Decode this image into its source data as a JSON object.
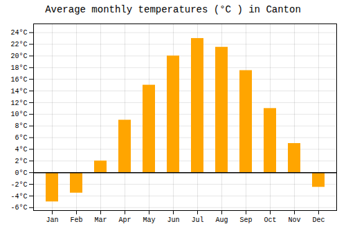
{
  "chart_data": {
    "type": "bar",
    "title": "Average monthly temperatures (°C ) in Canton",
    "categories": [
      "Jan",
      "Feb",
      "Mar",
      "Apr",
      "May",
      "Jun",
      "Jul",
      "Aug",
      "Sep",
      "Oct",
      "Nov",
      "Dec"
    ],
    "values": [
      -5,
      -3.5,
      2,
      9,
      15,
      20,
      23,
      21.5,
      17.5,
      11,
      5,
      -2.5
    ],
    "color": "#FFA500",
    "ylim": [
      -6.5,
      25.5
    ],
    "yticks": [
      {
        "value": -6,
        "label": "-6°C"
      },
      {
        "value": -4,
        "label": "-4°C"
      },
      {
        "value": -2,
        "label": "-2°C"
      },
      {
        "value": 0,
        "label": "0°C"
      },
      {
        "value": 2,
        "label": "2°C"
      },
      {
        "value": 4,
        "label": "4°C"
      },
      {
        "value": 6,
        "label": "6°C"
      },
      {
        "value": 8,
        "label": "8°C"
      },
      {
        "value": 10,
        "label": "10°C"
      },
      {
        "value": 12,
        "label": "12°C"
      },
      {
        "value": 14,
        "label": "14°C"
      },
      {
        "value": 16,
        "label": "16°C"
      },
      {
        "value": 18,
        "label": "18°C"
      },
      {
        "value": 20,
        "label": "20°C"
      },
      {
        "value": 22,
        "label": "22°C"
      },
      {
        "value": 24,
        "label": "24°C"
      }
    ],
    "grid": true
  }
}
